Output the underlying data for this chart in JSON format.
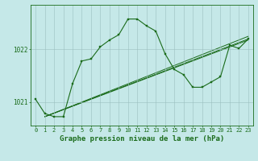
{
  "background_color": "#c5e8e8",
  "grid_color": "#9bbfbf",
  "line_color": "#1a6b1a",
  "marker_color": "#1a6b1a",
  "xlabel": "Graphe pression niveau de la mer (hPa)",
  "xlabel_fontsize": 6.5,
  "ylabel_ticks": [
    1021,
    1022
  ],
  "xlim": [
    -0.5,
    23.5
  ],
  "ylim": [
    1020.55,
    1022.85
  ],
  "tick_fontsize": 5.5,
  "main_series_x": [
    0,
    1,
    2,
    3,
    4,
    5,
    6,
    7,
    8,
    9,
    10,
    11,
    12,
    13,
    14,
    15,
    16,
    17,
    18,
    19,
    20,
    21,
    22,
    23
  ],
  "main_series_y": [
    1021.05,
    1020.78,
    1020.72,
    1020.72,
    1021.35,
    1021.78,
    1021.82,
    1022.05,
    1022.18,
    1022.28,
    1022.58,
    1022.58,
    1022.45,
    1022.35,
    1021.92,
    1021.62,
    1021.52,
    1021.28,
    1021.28,
    1021.38,
    1021.48,
    1022.08,
    1022.02,
    1022.2
  ],
  "straight_lines": [
    {
      "x0": 1,
      "y0": 1020.72,
      "x1": 23,
      "y1": 1022.2
    },
    {
      "x0": 1,
      "y0": 1020.72,
      "x1": 23,
      "y1": 1022.25
    },
    {
      "x0": 1,
      "y0": 1020.72,
      "x1": 23,
      "y1": 1022.18
    }
  ]
}
